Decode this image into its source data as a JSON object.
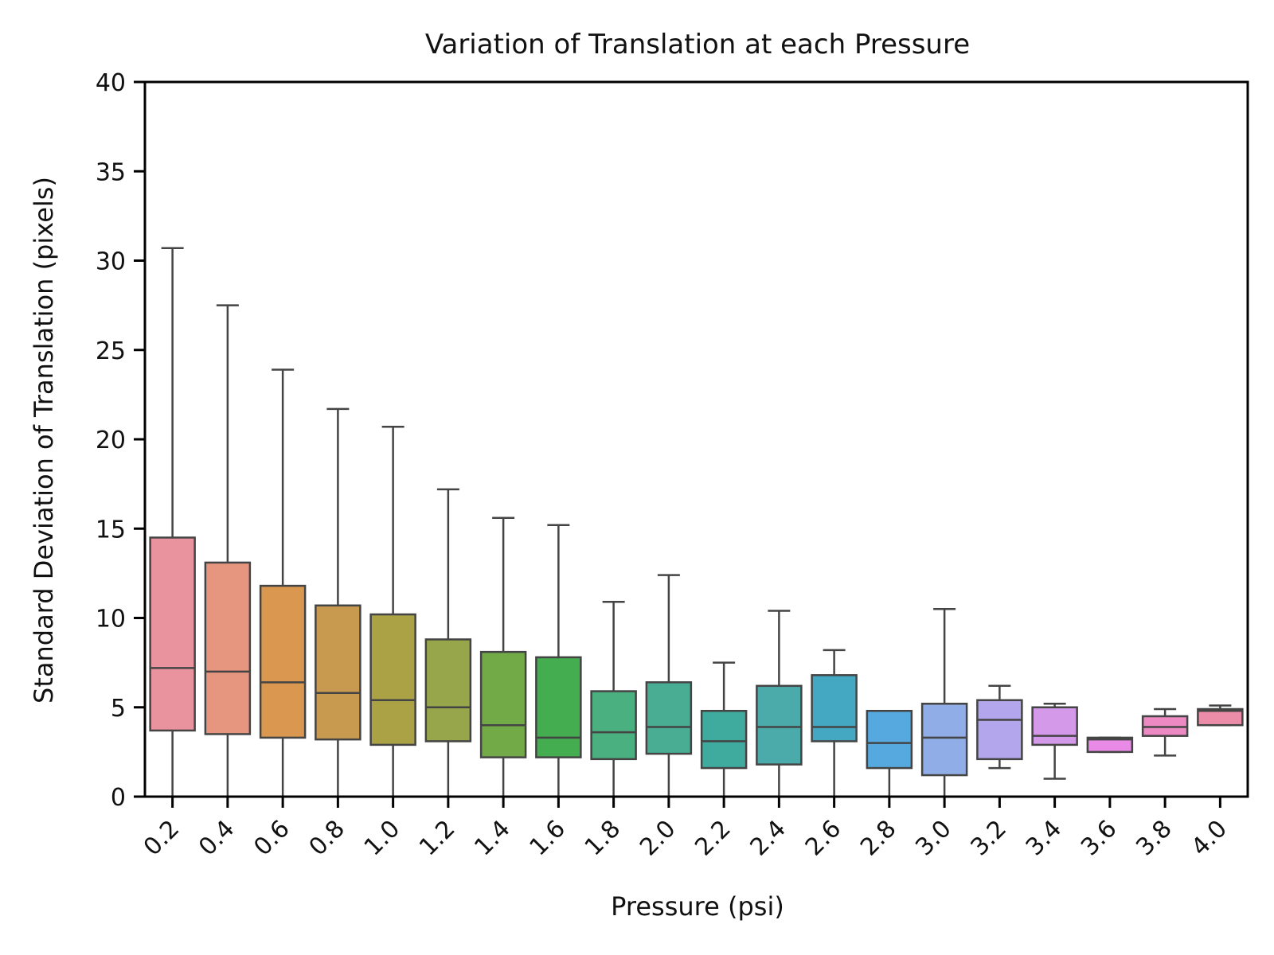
{
  "chart_data": {
    "type": "box",
    "title": "Variation of Translation at each Pressure",
    "xlabel": "Pressure (psi)",
    "ylabel": "Standard Deviation of Translation (pixels)",
    "ylim": [
      0,
      40
    ],
    "yticks": [
      0,
      5,
      10,
      15,
      20,
      25,
      30,
      35,
      40
    ],
    "categories": [
      "0.2",
      "0.4",
      "0.6",
      "0.8",
      "1.0",
      "1.2",
      "1.4",
      "1.6",
      "1.8",
      "2.0",
      "2.2",
      "2.4",
      "2.6",
      "2.8",
      "3.0",
      "3.2",
      "3.4",
      "3.6",
      "3.8",
      "4.0"
    ],
    "boxes": [
      {
        "category": "0.2",
        "whisker_low": 0.0,
        "q1": 3.7,
        "median": 7.2,
        "q3": 14.5,
        "whisker_high": 30.7,
        "color": "#e9939e"
      },
      {
        "category": "0.4",
        "whisker_low": 0.0,
        "q1": 3.5,
        "median": 7.0,
        "q3": 13.1,
        "whisker_high": 27.5,
        "color": "#e6957f"
      },
      {
        "category": "0.6",
        "whisker_low": 0.0,
        "q1": 3.3,
        "median": 6.4,
        "q3": 11.8,
        "whisker_high": 23.9,
        "color": "#d9974f"
      },
      {
        "category": "0.8",
        "whisker_low": 0.0,
        "q1": 3.2,
        "median": 5.8,
        "q3": 10.7,
        "whisker_high": 21.7,
        "color": "#c79a4f"
      },
      {
        "category": "1.0",
        "whisker_low": 0.0,
        "q1": 2.9,
        "median": 5.4,
        "q3": 10.2,
        "whisker_high": 20.7,
        "color": "#aba246"
      },
      {
        "category": "1.2",
        "whisker_low": 0.0,
        "q1": 3.1,
        "median": 5.0,
        "q3": 8.8,
        "whisker_high": 17.2,
        "color": "#97a64a"
      },
      {
        "category": "1.4",
        "whisker_low": 0.0,
        "q1": 2.2,
        "median": 4.0,
        "q3": 8.1,
        "whisker_high": 15.6,
        "color": "#72aa48"
      },
      {
        "category": "1.6",
        "whisker_low": 0.0,
        "q1": 2.2,
        "median": 3.3,
        "q3": 7.8,
        "whisker_high": 15.2,
        "color": "#44ad50"
      },
      {
        "category": "1.8",
        "whisker_low": 0.0,
        "q1": 2.1,
        "median": 3.6,
        "q3": 5.9,
        "whisker_high": 10.9,
        "color": "#4bb07f"
      },
      {
        "category": "2.0",
        "whisker_low": 0.0,
        "q1": 2.4,
        "median": 3.9,
        "q3": 6.4,
        "whisker_high": 12.4,
        "color": "#49ad93"
      },
      {
        "category": "2.2",
        "whisker_low": 0.0,
        "q1": 1.6,
        "median": 3.1,
        "q3": 4.8,
        "whisker_high": 7.5,
        "color": "#3fab9f"
      },
      {
        "category": "2.4",
        "whisker_low": 0.0,
        "q1": 1.8,
        "median": 3.9,
        "q3": 6.2,
        "whisker_high": 10.4,
        "color": "#4aabaa"
      },
      {
        "category": "2.6",
        "whisker_low": 0.0,
        "q1": 3.1,
        "median": 3.9,
        "q3": 6.8,
        "whisker_high": 8.2,
        "color": "#45a8c2"
      },
      {
        "category": "2.8",
        "whisker_low": 0.0,
        "q1": 1.6,
        "median": 3.0,
        "q3": 4.8,
        "whisker_high": 4.8,
        "color": "#56a9de"
      },
      {
        "category": "3.0",
        "whisker_low": 0.0,
        "q1": 1.2,
        "median": 3.3,
        "q3": 5.2,
        "whisker_high": 10.5,
        "color": "#90ade7"
      },
      {
        "category": "3.2",
        "whisker_low": 1.6,
        "q1": 2.1,
        "median": 4.3,
        "q3": 5.4,
        "whisker_high": 6.2,
        "color": "#b4a6ec"
      },
      {
        "category": "3.4",
        "whisker_low": 1.0,
        "q1": 2.9,
        "median": 3.4,
        "q3": 5.0,
        "whisker_high": 5.2,
        "color": "#d49ae9"
      },
      {
        "category": "3.6",
        "whisker_low": 2.5,
        "q1": 2.5,
        "median": 3.2,
        "q3": 3.3,
        "whisker_high": 3.3,
        "color": "#e88ae6"
      },
      {
        "category": "3.8",
        "whisker_low": 2.3,
        "q1": 3.4,
        "median": 3.9,
        "q3": 4.5,
        "whisker_high": 4.9,
        "color": "#ed8ac3"
      },
      {
        "category": "4.0",
        "whisker_low": 4.0,
        "q1": 4.0,
        "median": 4.8,
        "q3": 4.9,
        "whisker_high": 5.1,
        "color": "#eb8ca9"
      }
    ],
    "grid": false,
    "legend": "none"
  }
}
